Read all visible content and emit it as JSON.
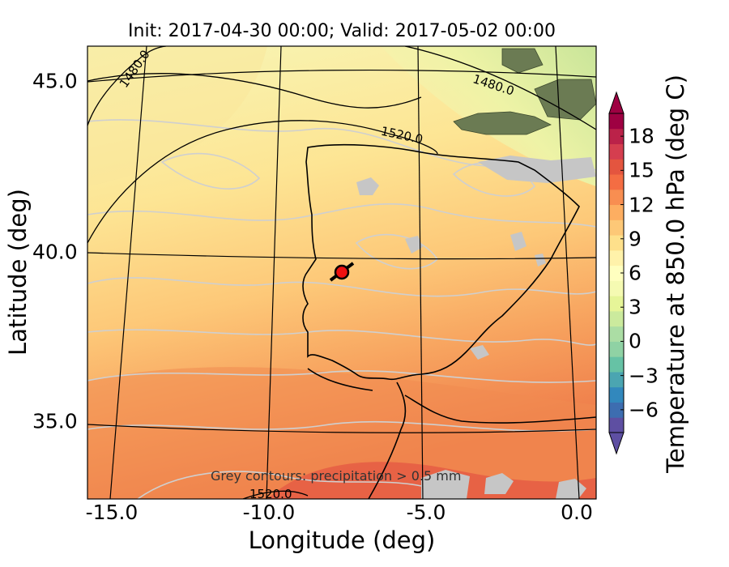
{
  "title": "Init: 2017-04-30 00:00; Valid: 2017-05-02 00:00",
  "xlabel": "Longitude (deg)",
  "ylabel": "Latitude (deg)",
  "colorbar": {
    "label": "Temperature at 850.0 hPa (deg C)",
    "ticks": [
      "−6",
      "−3",
      "0",
      "3",
      "6",
      "9",
      "12",
      "15",
      "18"
    ],
    "min": -8,
    "max": 20
  },
  "xticks": [
    "-15.0",
    "-10.0",
    "-5.0",
    "0.0"
  ],
  "yticks": [
    "45.0",
    "40.0",
    "35.0"
  ],
  "annotation": "Grey contours: precipitation  > 0.5 mm",
  "contour_labels": [
    "1480.0",
    "1480.0",
    "1520.0",
    "1520.0"
  ],
  "marker": {
    "lon": -7.6,
    "lat": 39.3,
    "color": "#ee1111"
  },
  "colors": {
    "cold": "#5e4fa2",
    "mid": "#ffffbf",
    "warm": "#f46d43",
    "hot": "#9e0142"
  }
}
